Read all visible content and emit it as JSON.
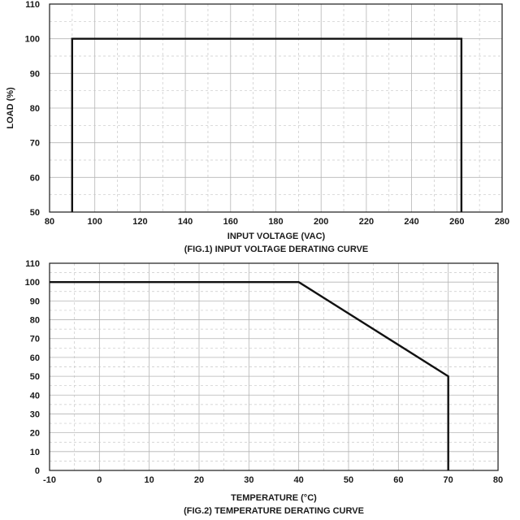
{
  "chart_data": [
    {
      "type": "line",
      "title": "(FIG.1) INPUT VOLTAGE DERATING CURVE",
      "xlabel": "INPUT VOLTAGE (VAC)",
      "ylabel": "LOAD (%)",
      "xlim": [
        80,
        280
      ],
      "ylim": [
        50,
        110
      ],
      "xticks": [
        "80",
        "100",
        "120",
        "140",
        "160",
        "180",
        "200",
        "220",
        "240",
        "260",
        "280"
      ],
      "yticks": [
        "50",
        "60",
        "70",
        "80",
        "90",
        "100",
        "110"
      ],
      "grid": true,
      "series": [
        {
          "x": [
            90,
            90,
            262,
            262
          ],
          "y": [
            50,
            100,
            100,
            50
          ]
        }
      ]
    },
    {
      "type": "line",
      "title": "(FIG.2) TEMPERATURE DERATING CURVE",
      "xlabel": "TEMPERATURE (°C)",
      "ylabel": "",
      "xlim": [
        -10,
        80
      ],
      "ylim": [
        0,
        110
      ],
      "xticks": [
        "-10",
        "0",
        "10",
        "20",
        "30",
        "40",
        "50",
        "60",
        "70",
        "80"
      ],
      "yticks": [
        "0",
        "10",
        "20",
        "30",
        "40",
        "50",
        "60",
        "70",
        "80",
        "90",
        "100",
        "110"
      ],
      "grid": true,
      "series": [
        {
          "x": [
            -10,
            40,
            70,
            70
          ],
          "y": [
            100,
            100,
            50,
            0
          ]
        }
      ]
    }
  ]
}
